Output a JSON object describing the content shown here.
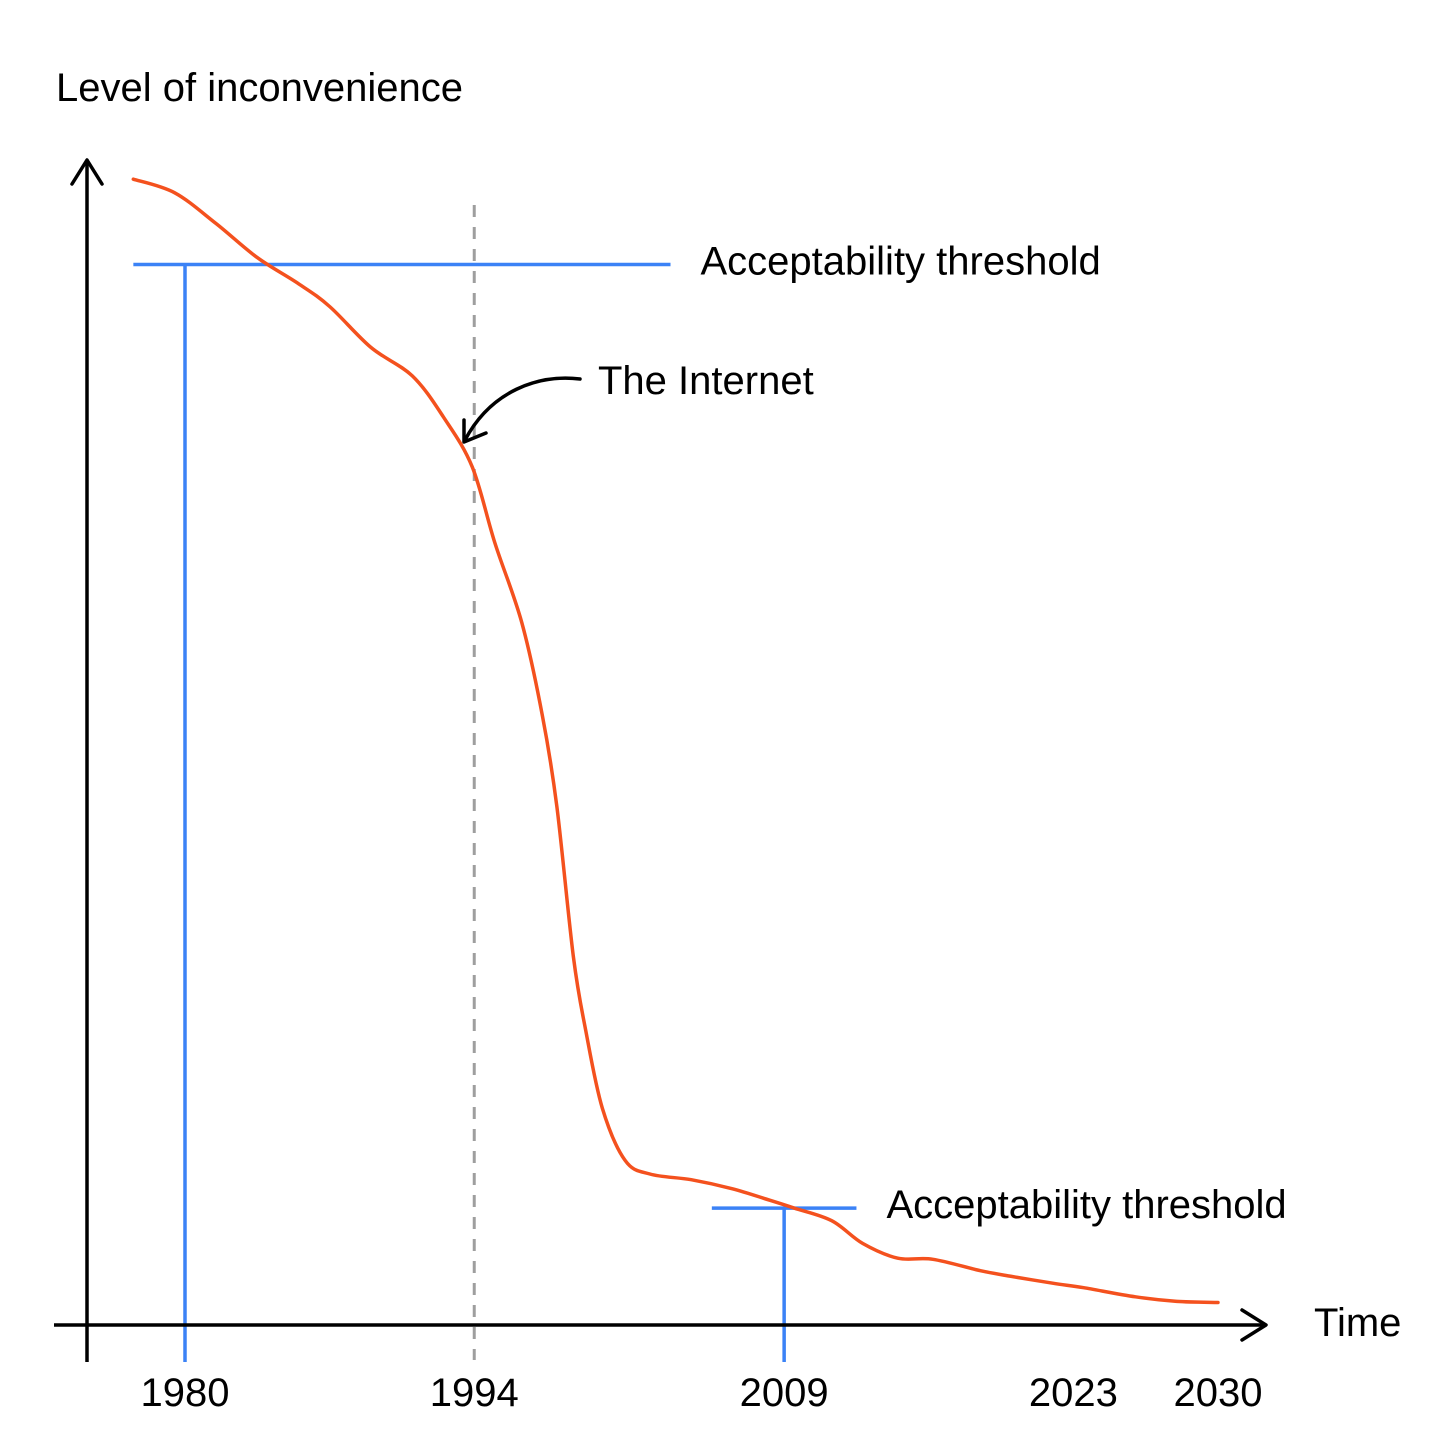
{
  "chart_data": {
    "type": "line",
    "title": "",
    "ylabel": "Level of inconvenience",
    "xlabel": "Time",
    "xlim": [
      1975,
      2033
    ],
    "ylim": [
      0,
      100
    ],
    "x_ticks": [
      {
        "value": 1980,
        "label": "1980"
      },
      {
        "value": 1994,
        "label": "1994"
      },
      {
        "value": 2009,
        "label": "2009"
      },
      {
        "value": 2023,
        "label": "2023"
      },
      {
        "value": 2030,
        "label": "2030"
      }
    ],
    "series": [
      {
        "name": "Level of inconvenience",
        "color": "#f4511e",
        "x": [
          1977.5,
          1979.5,
          1981.5,
          1983.5,
          1985.5,
          1987,
          1989,
          1991,
          1992.5,
          1993.9,
          1995,
          1996.3,
          1997.3,
          1998,
          1998.8,
          1999.4,
          2000.2,
          2001.3,
          2002.5,
          2004.5,
          2006.5,
          2008.3,
          2009.5,
          2011.3,
          2012.8,
          2014.5,
          2016.2,
          2018.5,
          2020,
          2022,
          2023.5,
          2026,
          2028,
          2030
        ],
        "y": [
          95.5,
          94.3,
          91.6,
          88.6,
          86.3,
          84.3,
          80.7,
          78.2,
          74.6,
          70.2,
          63.5,
          56.5,
          48.3,
          40.3,
          27.1,
          20.6,
          13.8,
          9.2,
          8.0,
          7.5,
          6.7,
          5.7,
          5.0,
          3.9,
          1.9,
          0.6,
          0.5,
          -0.5,
          -1.0,
          -1.6,
          -2.0,
          -2.8,
          -3.2,
          -3.3
        ]
      }
    ],
    "thresholds": [
      {
        "label": "Acceptability threshold",
        "y": 88.0,
        "x_start": 1977.5,
        "x_end": 2003.5,
        "drop_x": 1980,
        "color": "#3b82f6"
      },
      {
        "label": "Acceptability threshold",
        "y": 5.0,
        "x_start": 2005.5,
        "x_end": 2012.5,
        "drop_x": 2009,
        "color": "#3b82f6"
      }
    ],
    "event": {
      "label": "The Internet",
      "x": 1994
    }
  }
}
